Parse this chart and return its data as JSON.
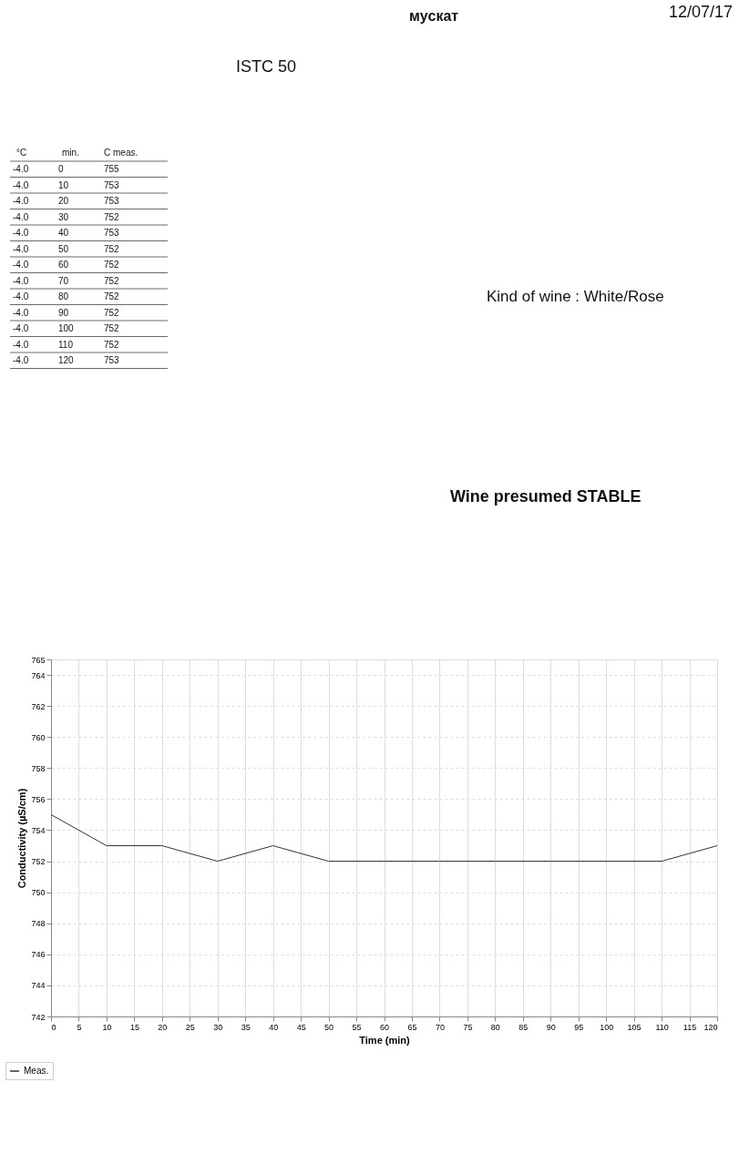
{
  "chart_data": {
    "type": "line",
    "title": "ISTC 50",
    "subtitle": "муcкат",
    "xlabel": "Time (min)",
    "ylabel": "Conductivity (µS/cm)",
    "x": [
      0,
      10,
      20,
      30,
      40,
      50,
      60,
      70,
      80,
      90,
      100,
      110,
      120
    ],
    "series": [
      {
        "name": "Meas.",
        "color": "#333333",
        "values": [
          755,
          753,
          753,
          752,
          753,
          752,
          752,
          752,
          752,
          752,
          752,
          752,
          753
        ]
      }
    ],
    "xlim": [
      0,
      120
    ],
    "xticks": [
      0,
      5,
      10,
      15,
      20,
      25,
      30,
      35,
      40,
      45,
      50,
      55,
      60,
      65,
      70,
      75,
      80,
      85,
      90,
      95,
      100,
      105,
      110,
      115,
      120
    ],
    "ylim": [
      742,
      765
    ],
    "yticks": [
      742,
      744,
      746,
      748,
      750,
      752,
      754,
      756,
      758,
      760,
      762,
      764,
      765
    ],
    "grid": true,
    "legend": "bottom left",
    "marker": "none",
    "line_style": "solid",
    "annotations": [
      "12/07/17",
      "Kind of wine : White/Rose",
      "Wine presumed STABLE",
      "°C",
      "min.",
      "C meas.",
      "-4.0",
      "-4.0",
      "-4.0",
      "-4.0",
      "-4.0",
      "-4.0",
      "-4.0",
      "-4.0",
      "-4.0",
      "-4.0",
      "-4.0",
      "-4.0",
      "-4.0",
      "0",
      "10",
      "20",
      "30",
      "40",
      "50",
      "60",
      "70",
      "80",
      "90",
      "100",
      "110",
      "120",
      "755",
      "753",
      "753",
      "752",
      "753",
      "752",
      "752",
      "752",
      "752",
      "752",
      "752",
      "752",
      "753"
    ]
  }
}
